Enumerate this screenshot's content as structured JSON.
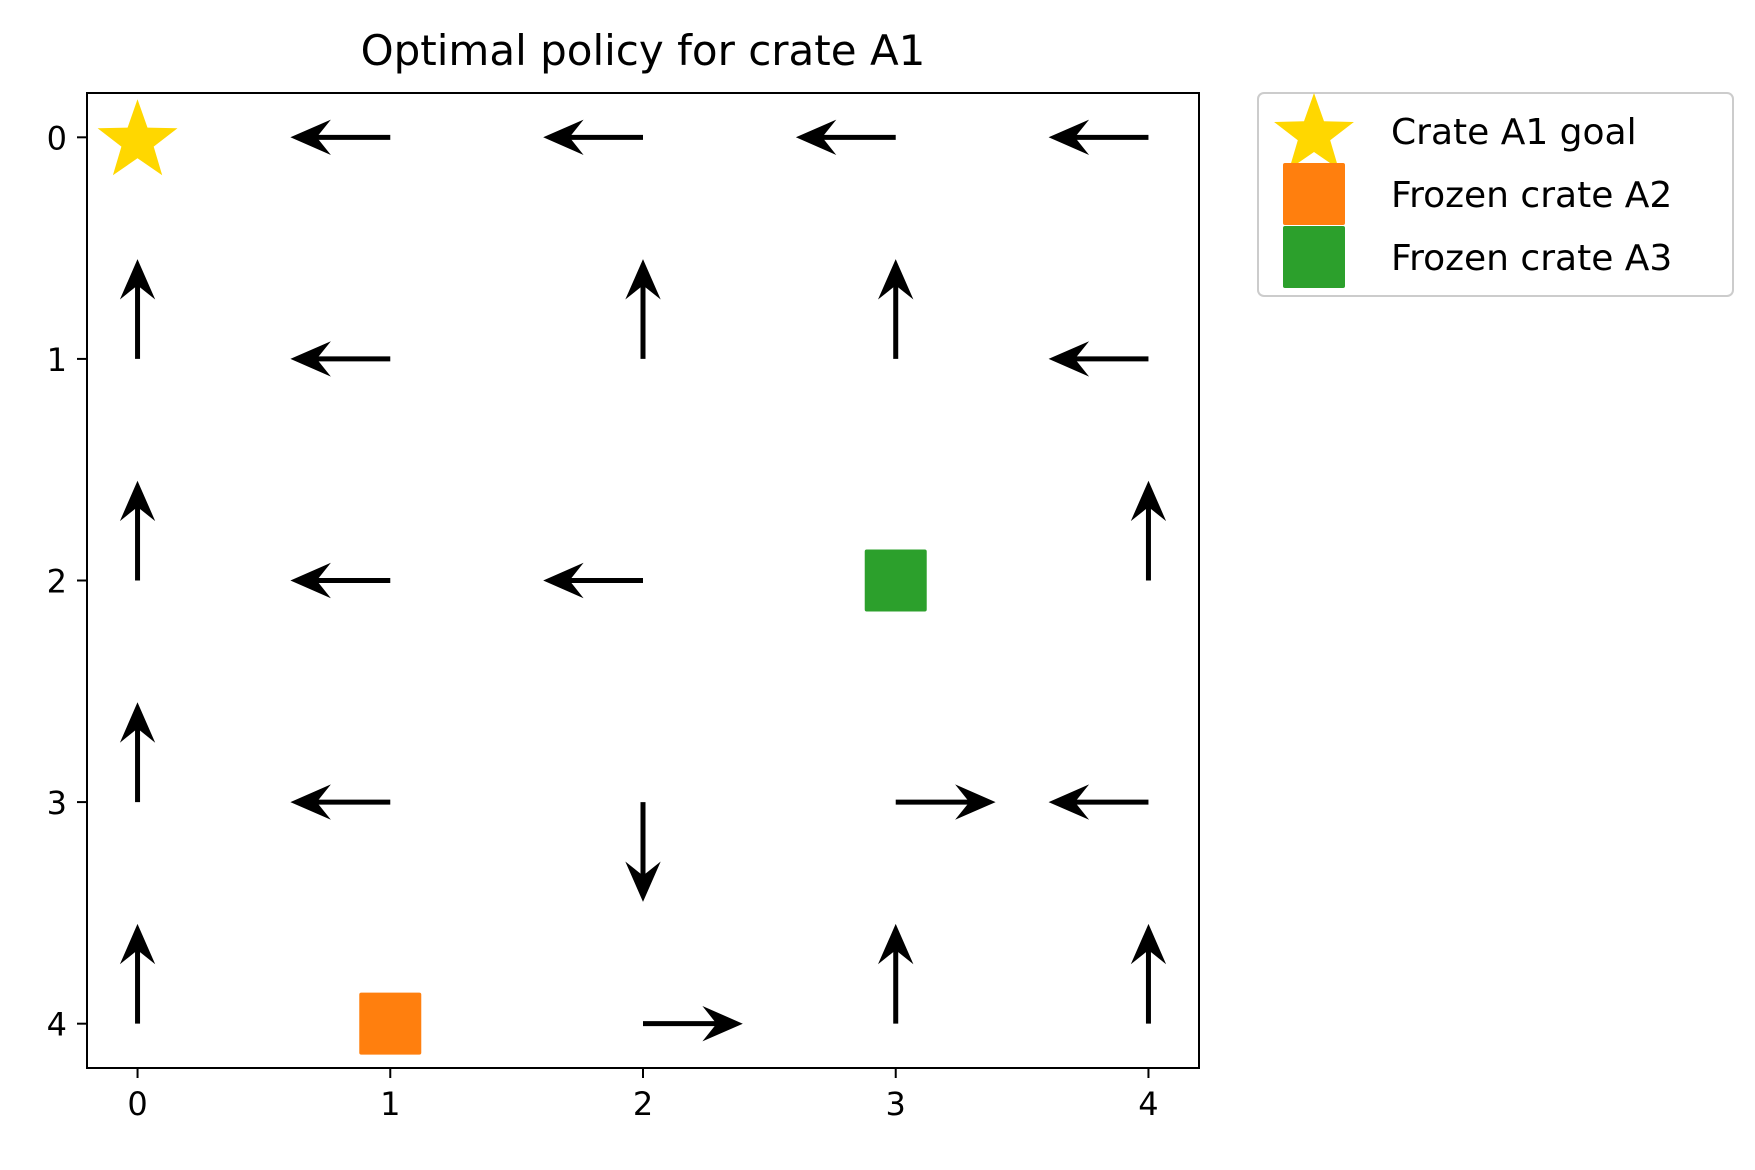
{
  "chart_data": {
    "type": "quiver",
    "title": "Optimal policy for crate A1",
    "xlabel": "",
    "ylabel": "",
    "xlim": [
      -0.2,
      4.2
    ],
    "ylim": [
      4.2,
      -0.2
    ],
    "y_inverted": true,
    "grid": false,
    "x_ticks": [
      "0",
      "1",
      "2",
      "3",
      "4"
    ],
    "y_ticks": [
      "0",
      "1",
      "2",
      "3",
      "4"
    ],
    "arrows": [
      {
        "x": 1,
        "y": 0,
        "dir": "left"
      },
      {
        "x": 2,
        "y": 0,
        "dir": "left"
      },
      {
        "x": 3,
        "y": 0,
        "dir": "left"
      },
      {
        "x": 4,
        "y": 0,
        "dir": "left"
      },
      {
        "x": 0,
        "y": 1,
        "dir": "up"
      },
      {
        "x": 1,
        "y": 1,
        "dir": "left"
      },
      {
        "x": 2,
        "y": 1,
        "dir": "up"
      },
      {
        "x": 3,
        "y": 1,
        "dir": "up"
      },
      {
        "x": 4,
        "y": 1,
        "dir": "left"
      },
      {
        "x": 0,
        "y": 2,
        "dir": "up"
      },
      {
        "x": 1,
        "y": 2,
        "dir": "left"
      },
      {
        "x": 2,
        "y": 2,
        "dir": "left"
      },
      {
        "x": 4,
        "y": 2,
        "dir": "up"
      },
      {
        "x": 0,
        "y": 3,
        "dir": "up"
      },
      {
        "x": 1,
        "y": 3,
        "dir": "left"
      },
      {
        "x": 2,
        "y": 3,
        "dir": "down"
      },
      {
        "x": 3,
        "y": 3,
        "dir": "right"
      },
      {
        "x": 4,
        "y": 3,
        "dir": "left"
      },
      {
        "x": 0,
        "y": 4,
        "dir": "up"
      },
      {
        "x": 2,
        "y": 4,
        "dir": "right"
      },
      {
        "x": 3,
        "y": 4,
        "dir": "up"
      },
      {
        "x": 4,
        "y": 4,
        "dir": "up"
      }
    ],
    "markers": [
      {
        "name": "Crate A1 goal",
        "shape": "star",
        "x": 0,
        "y": 0,
        "color": "#FFD700"
      },
      {
        "name": "Frozen crate A2",
        "shape": "square",
        "x": 1,
        "y": 4,
        "color": "#FF7F0E"
      },
      {
        "name": "Frozen crate A3",
        "shape": "square",
        "x": 3,
        "y": 2,
        "color": "#2CA02C"
      }
    ],
    "legend": {
      "placement": "outside-upper-right",
      "entries": [
        "Crate A1 goal",
        "Frozen crate A2",
        "Frozen crate A3"
      ]
    },
    "arrow_color": "#000000"
  }
}
